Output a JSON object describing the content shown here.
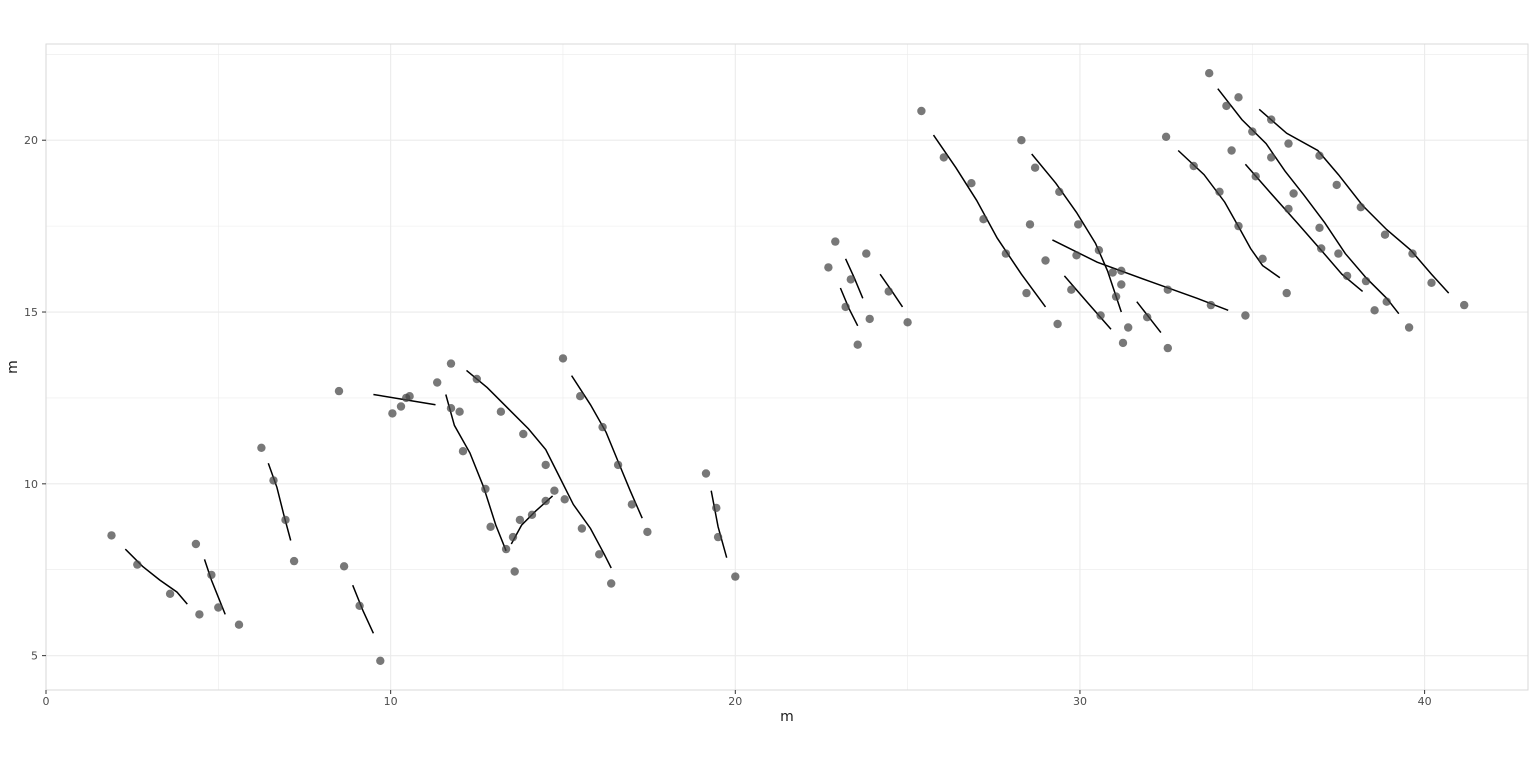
{
  "chart_data": {
    "type": "scatter",
    "title": "",
    "xlabel": "m",
    "ylabel": "m",
    "xlim": [
      0,
      43
    ],
    "ylim": [
      4,
      22.8
    ],
    "x_ticks": [
      0,
      10,
      20,
      30,
      40
    ],
    "y_ticks": [
      5,
      10,
      15,
      20
    ],
    "grid": true,
    "colors": {
      "points": "#444444",
      "lines": "#000000",
      "grid": "#ebebeb",
      "panel_border": "#d9d9d9"
    },
    "points": [
      [
        1.9,
        8.5
      ],
      [
        2.65,
        7.65
      ],
      [
        3.6,
        6.8
      ],
      [
        4.35,
        8.25
      ],
      [
        4.45,
        6.2
      ],
      [
        4.8,
        7.35
      ],
      [
        5.0,
        6.4
      ],
      [
        5.6,
        5.9
      ],
      [
        6.25,
        11.05
      ],
      [
        6.6,
        10.1
      ],
      [
        6.95,
        8.95
      ],
      [
        7.2,
        7.75
      ],
      [
        8.5,
        12.7
      ],
      [
        8.65,
        7.6
      ],
      [
        9.1,
        6.45
      ],
      [
        9.7,
        4.85
      ],
      [
        10.05,
        12.05
      ],
      [
        10.3,
        12.25
      ],
      [
        10.45,
        12.5
      ],
      [
        10.55,
        12.55
      ],
      [
        11.35,
        12.95
      ],
      [
        11.75,
        12.2
      ],
      [
        11.75,
        13.5
      ],
      [
        12.0,
        12.1
      ],
      [
        12.1,
        10.95
      ],
      [
        12.5,
        13.05
      ],
      [
        12.75,
        9.85
      ],
      [
        12.9,
        8.75
      ],
      [
        13.2,
        12.1
      ],
      [
        13.35,
        8.1
      ],
      [
        13.55,
        8.45
      ],
      [
        13.6,
        7.45
      ],
      [
        13.75,
        8.95
      ],
      [
        13.85,
        11.45
      ],
      [
        14.1,
        9.1
      ],
      [
        14.5,
        9.5
      ],
      [
        14.5,
        10.55
      ],
      [
        14.75,
        9.8
      ],
      [
        15.0,
        13.65
      ],
      [
        15.05,
        9.55
      ],
      [
        15.5,
        12.55
      ],
      [
        15.55,
        8.7
      ],
      [
        16.05,
        7.95
      ],
      [
        16.15,
        11.65
      ],
      [
        16.4,
        7.1
      ],
      [
        16.6,
        10.55
      ],
      [
        17.0,
        9.4
      ],
      [
        17.45,
        8.6
      ],
      [
        19.15,
        10.3
      ],
      [
        19.45,
        9.3
      ],
      [
        19.5,
        8.45
      ],
      [
        20.0,
        7.3
      ],
      [
        22.7,
        16.3
      ],
      [
        22.9,
        17.05
      ],
      [
        23.2,
        15.15
      ],
      [
        23.35,
        15.95
      ],
      [
        23.55,
        14.05
      ],
      [
        23.8,
        16.7
      ],
      [
        23.9,
        14.8
      ],
      [
        24.45,
        15.6
      ],
      [
        25.0,
        14.7
      ],
      [
        25.4,
        20.85
      ],
      [
        26.05,
        19.5
      ],
      [
        26.85,
        18.75
      ],
      [
        27.2,
        17.7
      ],
      [
        27.85,
        16.7
      ],
      [
        28.3,
        20.0
      ],
      [
        28.45,
        15.55
      ],
      [
        28.55,
        17.55
      ],
      [
        28.7,
        19.2
      ],
      [
        29.0,
        16.5
      ],
      [
        29.35,
        14.65
      ],
      [
        29.4,
        18.5
      ],
      [
        29.75,
        15.65
      ],
      [
        29.9,
        16.65
      ],
      [
        29.95,
        17.55
      ],
      [
        30.55,
        16.8
      ],
      [
        30.6,
        14.9
      ],
      [
        30.95,
        16.15
      ],
      [
        31.05,
        15.45
      ],
      [
        31.2,
        16.2
      ],
      [
        31.2,
        15.8
      ],
      [
        31.25,
        14.1
      ],
      [
        31.4,
        14.55
      ],
      [
        31.95,
        14.85
      ],
      [
        32.5,
        20.1
      ],
      [
        32.55,
        15.65
      ],
      [
        32.55,
        13.95
      ],
      [
        33.3,
        19.25
      ],
      [
        33.75,
        21.95
      ],
      [
        33.8,
        15.2
      ],
      [
        34.05,
        18.5
      ],
      [
        34.25,
        21.0
      ],
      [
        34.4,
        19.7
      ],
      [
        34.6,
        21.25
      ],
      [
        34.6,
        17.5
      ],
      [
        34.8,
        14.9
      ],
      [
        35.0,
        20.25
      ],
      [
        35.1,
        18.95
      ],
      [
        35.3,
        16.55
      ],
      [
        35.55,
        20.6
      ],
      [
        35.55,
        19.5
      ],
      [
        36.0,
        15.55
      ],
      [
        36.05,
        19.9
      ],
      [
        36.05,
        18.0
      ],
      [
        36.2,
        18.45
      ],
      [
        36.95,
        19.55
      ],
      [
        36.95,
        17.45
      ],
      [
        37.0,
        16.85
      ],
      [
        37.45,
        18.7
      ],
      [
        37.5,
        16.7
      ],
      [
        37.75,
        16.05
      ],
      [
        38.15,
        18.05
      ],
      [
        38.3,
        15.9
      ],
      [
        38.55,
        15.05
      ],
      [
        38.85,
        17.25
      ],
      [
        38.9,
        15.3
      ],
      [
        39.55,
        14.55
      ],
      [
        39.65,
        16.7
      ],
      [
        40.2,
        15.85
      ],
      [
        41.15,
        15.2
      ]
    ],
    "lines": [
      [
        [
          2.3,
          8.1
        ],
        [
          2.8,
          7.6
        ],
        [
          3.3,
          7.2
        ],
        [
          3.8,
          6.85
        ],
        [
          4.1,
          6.5
        ]
      ],
      [
        [
          4.6,
          7.8
        ],
        [
          4.8,
          7.2
        ],
        [
          5.0,
          6.7
        ],
        [
          5.2,
          6.2
        ]
      ],
      [
        [
          6.45,
          10.6
        ],
        [
          6.7,
          9.9
        ],
        [
          6.9,
          9.1
        ],
        [
          7.1,
          8.35
        ]
      ],
      [
        [
          8.9,
          7.05
        ],
        [
          9.2,
          6.3
        ],
        [
          9.5,
          5.65
        ]
      ],
      [
        [
          9.5,
          12.6
        ],
        [
          10.4,
          12.45
        ],
        [
          11.3,
          12.3
        ]
      ],
      [
        [
          11.6,
          12.6
        ],
        [
          11.85,
          11.7
        ],
        [
          12.3,
          10.9
        ],
        [
          12.7,
          9.9
        ],
        [
          13.05,
          8.8
        ],
        [
          13.35,
          8.05
        ]
      ],
      [
        [
          12.2,
          13.3
        ],
        [
          12.8,
          12.8
        ],
        [
          13.4,
          12.2
        ],
        [
          14.0,
          11.6
        ],
        [
          14.5,
          11.0
        ],
        [
          14.85,
          10.3
        ],
        [
          15.3,
          9.4
        ],
        [
          15.8,
          8.7
        ],
        [
          16.2,
          7.95
        ],
        [
          16.4,
          7.55
        ]
      ],
      [
        [
          13.5,
          8.25
        ],
        [
          13.8,
          8.8
        ],
        [
          14.2,
          9.2
        ],
        [
          14.7,
          9.65
        ]
      ],
      [
        [
          15.25,
          13.15
        ],
        [
          15.8,
          12.3
        ],
        [
          16.25,
          11.5
        ],
        [
          16.6,
          10.65
        ],
        [
          16.95,
          9.8
        ],
        [
          17.3,
          9.0
        ]
      ],
      [
        [
          19.3,
          9.8
        ],
        [
          19.5,
          8.75
        ],
        [
          19.75,
          7.85
        ]
      ],
      [
        [
          23.05,
          15.7
        ],
        [
          23.3,
          15.1
        ],
        [
          23.55,
          14.6
        ]
      ],
      [
        [
          23.2,
          16.55
        ],
        [
          23.45,
          16.0
        ],
        [
          23.7,
          15.4
        ]
      ],
      [
        [
          24.2,
          16.1
        ],
        [
          24.55,
          15.6
        ],
        [
          24.85,
          15.15
        ]
      ],
      [
        [
          25.75,
          20.15
        ],
        [
          26.4,
          19.2
        ],
        [
          27.0,
          18.25
        ],
        [
          27.6,
          17.15
        ],
        [
          28.3,
          16.1
        ],
        [
          29.0,
          15.15
        ]
      ],
      [
        [
          28.6,
          19.6
        ],
        [
          29.3,
          18.75
        ],
        [
          29.9,
          17.9
        ],
        [
          30.45,
          17.0
        ],
        [
          30.8,
          16.2
        ],
        [
          31.0,
          15.6
        ],
        [
          31.2,
          15.0
        ]
      ],
      [
        [
          29.2,
          17.1
        ],
        [
          30.5,
          16.45
        ],
        [
          32.0,
          15.9
        ],
        [
          33.4,
          15.4
        ],
        [
          34.3,
          15.05
        ]
      ],
      [
        [
          29.55,
          16.05
        ],
        [
          30.2,
          15.3
        ],
        [
          30.9,
          14.5
        ]
      ],
      [
        [
          31.65,
          15.3
        ],
        [
          32.0,
          14.85
        ],
        [
          32.35,
          14.4
        ]
      ],
      [
        [
          32.85,
          19.7
        ],
        [
          33.6,
          19.0
        ],
        [
          34.2,
          18.2
        ],
        [
          34.65,
          17.4
        ],
        [
          34.95,
          16.85
        ],
        [
          35.3,
          16.35
        ],
        [
          35.8,
          16.0
        ]
      ],
      [
        [
          34.0,
          21.5
        ],
        [
          34.7,
          20.6
        ],
        [
          35.4,
          19.9
        ],
        [
          35.95,
          19.1
        ],
        [
          36.5,
          18.4
        ],
        [
          37.1,
          17.6
        ],
        [
          37.7,
          16.7
        ],
        [
          38.3,
          16.0
        ],
        [
          38.9,
          15.4
        ],
        [
          39.25,
          14.95
        ]
      ],
      [
        [
          34.8,
          19.3
        ],
        [
          35.5,
          18.5
        ],
        [
          36.3,
          17.6
        ],
        [
          37.0,
          16.8
        ],
        [
          37.6,
          16.1
        ],
        [
          38.2,
          15.6
        ]
      ],
      [
        [
          35.2,
          20.9
        ],
        [
          36.0,
          20.2
        ],
        [
          36.9,
          19.7
        ],
        [
          37.5,
          19.0
        ],
        [
          38.2,
          18.1
        ],
        [
          38.9,
          17.4
        ],
        [
          39.6,
          16.8
        ],
        [
          40.2,
          16.1
        ],
        [
          40.7,
          15.55
        ]
      ]
    ]
  }
}
